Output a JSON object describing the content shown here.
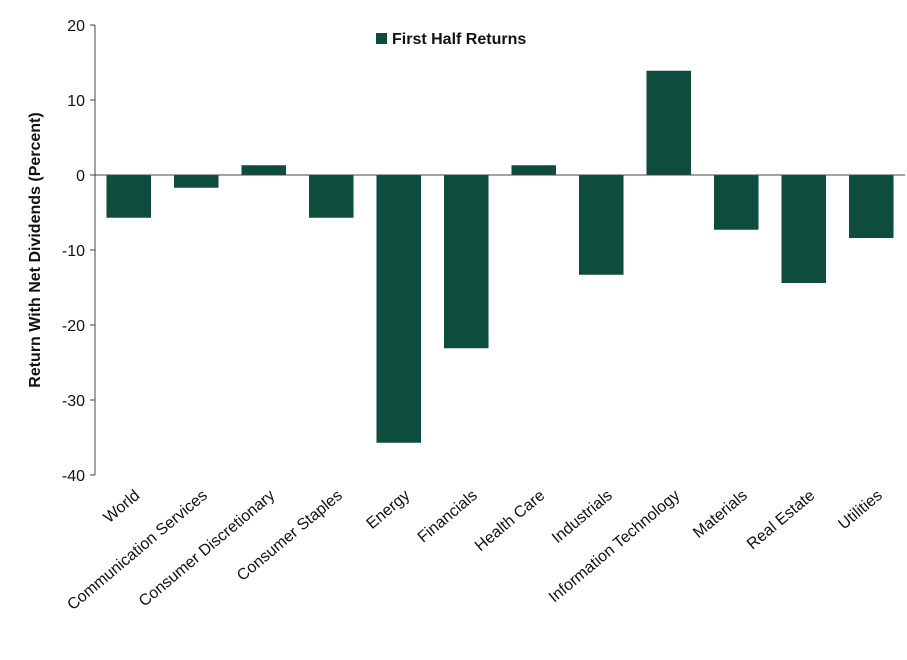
{
  "chart_data": {
    "type": "bar",
    "legend_label": "First Half Returns",
    "y_label": "Return With Net Dividends (Percent)",
    "categories": [
      "World",
      "Communication Services",
      "Consumer Discretionary",
      "Consumer Staples",
      "Energy",
      "Financials",
      "Health Care",
      "Industrials",
      "Information Technology",
      "Materials",
      "Real Estate",
      "Utilities"
    ],
    "values": [
      -5.7,
      -1.7,
      1.3,
      -5.7,
      -35.7,
      -23.1,
      1.3,
      -13.3,
      13.9,
      -7.3,
      -14.4,
      -8.4
    ],
    "color": "#0e4d3e",
    "ylim": [
      -40,
      20
    ],
    "yticks": [
      -40,
      -30,
      -20,
      -10,
      0,
      10,
      20
    ],
    "grid": false
  }
}
